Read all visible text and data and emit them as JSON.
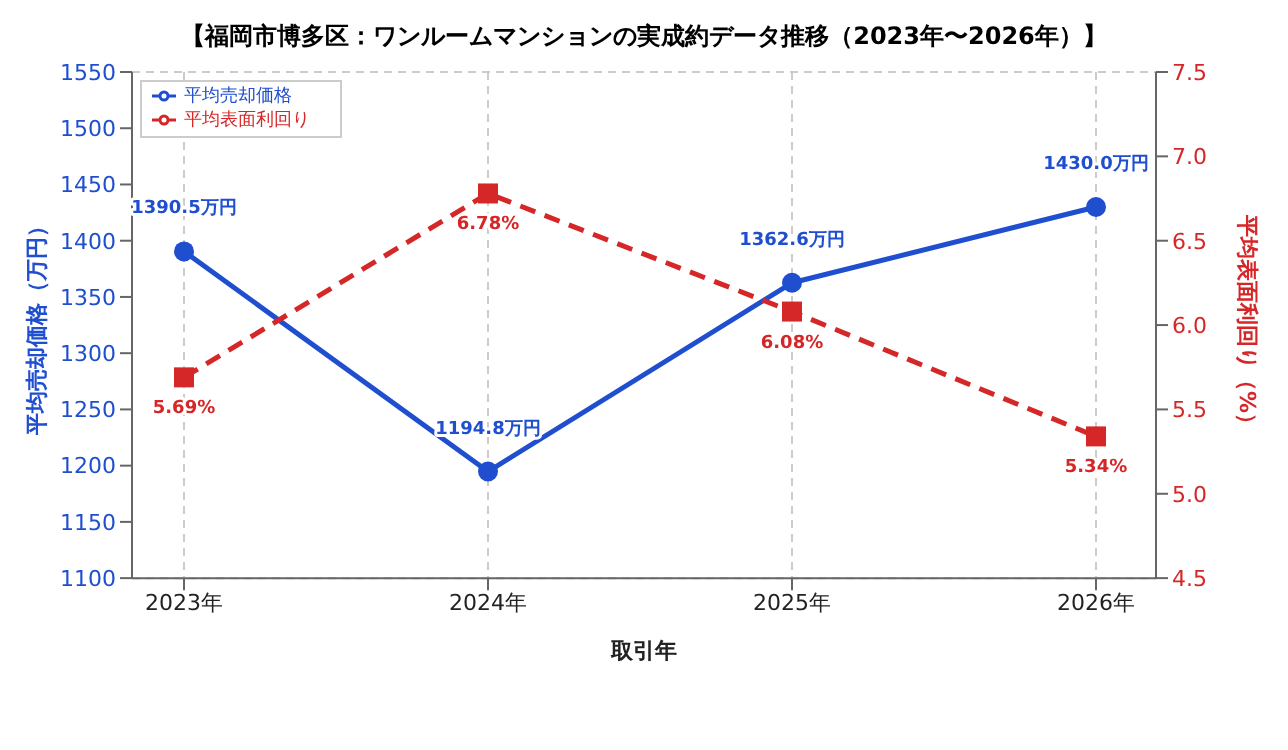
{
  "chart_data": {
    "type": "line",
    "title": "【福岡市博多区：ワンルームマンションの実成約データ推移（2023年〜2026年）】",
    "xlabel": "取引年",
    "ylabel": "平均売却価格（万円）",
    "y2label": "平均表面利回り（%）",
    "categories": [
      "2023年",
      "2024年",
      "2025年",
      "2026年"
    ],
    "series": [
      {
        "name": "平均売却価格",
        "color": "#1f4fcf",
        "values": [
          1390.5,
          1194.8,
          1362.6,
          1430.0
        ],
        "value_labels": [
          "1390.5万円",
          "1194.8万円",
          "1362.6万円",
          "1430.0万円"
        ],
        "marker": "circle",
        "line_style": "solid"
      },
      {
        "name": "平均表面利回り",
        "color": "#d62728",
        "axis": "y2",
        "values": [
          5.69,
          6.78,
          6.08,
          5.34
        ],
        "value_labels": [
          "5.69%",
          "6.78%",
          "6.08%",
          "5.34%"
        ],
        "marker": "square",
        "line_style": "dashed"
      }
    ],
    "ylim": [
      1100,
      1550
    ],
    "yticks": [
      1100,
      1150,
      1200,
      1250,
      1300,
      1350,
      1400,
      1450,
      1500,
      1550
    ],
    "y2lim": [
      4.5,
      7.5
    ],
    "y2ticks": [
      4.5,
      {
        "value": 5,
        "label": "5.0"
      },
      5.5,
      {
        "value": 6,
        "label": "6.0"
      },
      6.5,
      {
        "value": 7,
        "label": "7.0"
      },
      7.5
    ],
    "grid": true,
    "legend": "top left"
  }
}
